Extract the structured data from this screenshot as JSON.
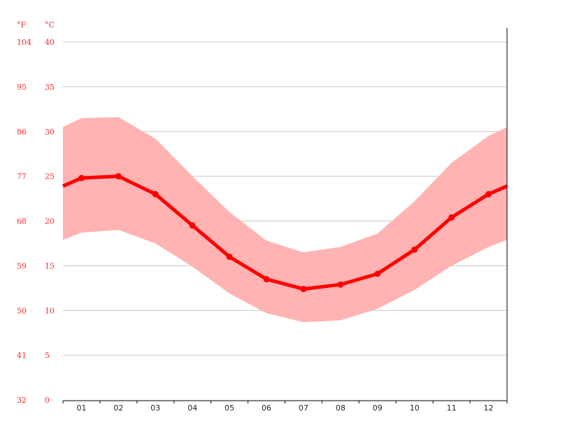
{
  "chart_data": {
    "type": "line",
    "x_unit_label": "",
    "y_units": {
      "left": "°F",
      "right": "°C"
    },
    "categories": [
      "01",
      "02",
      "03",
      "04",
      "05",
      "06",
      "07",
      "08",
      "09",
      "10",
      "11",
      "12"
    ],
    "series": [
      {
        "role": "mean",
        "values": [
          24.8,
          25.0,
          23.0,
          19.5,
          16.0,
          13.5,
          12.4,
          12.9,
          14.1,
          16.8,
          20.4,
          23.0
        ]
      },
      {
        "role": "max",
        "values": [
          31.5,
          31.6,
          29.2,
          25.0,
          21.0,
          17.8,
          16.5,
          17.1,
          18.6,
          22.2,
          26.5,
          29.5
        ]
      },
      {
        "role": "min",
        "values": [
          18.7,
          19.0,
          17.5,
          14.9,
          11.9,
          9.7,
          8.7,
          8.9,
          10.2,
          12.3,
          15.0,
          17.1
        ]
      }
    ],
    "ylim": [
      0,
      40
    ],
    "yticks_c": [
      "0",
      "5",
      "10",
      "15",
      "20",
      "25",
      "30",
      "35",
      "40"
    ],
    "yticks_f": [
      "32",
      "41",
      "50",
      "59",
      "68",
      "77",
      "86",
      "95",
      "104"
    ],
    "grid": true,
    "colors": {
      "line": "#ff0000",
      "band": "#ffb3b3",
      "ticks": "#ff2a2a",
      "grid": "#c8c8c8"
    }
  }
}
